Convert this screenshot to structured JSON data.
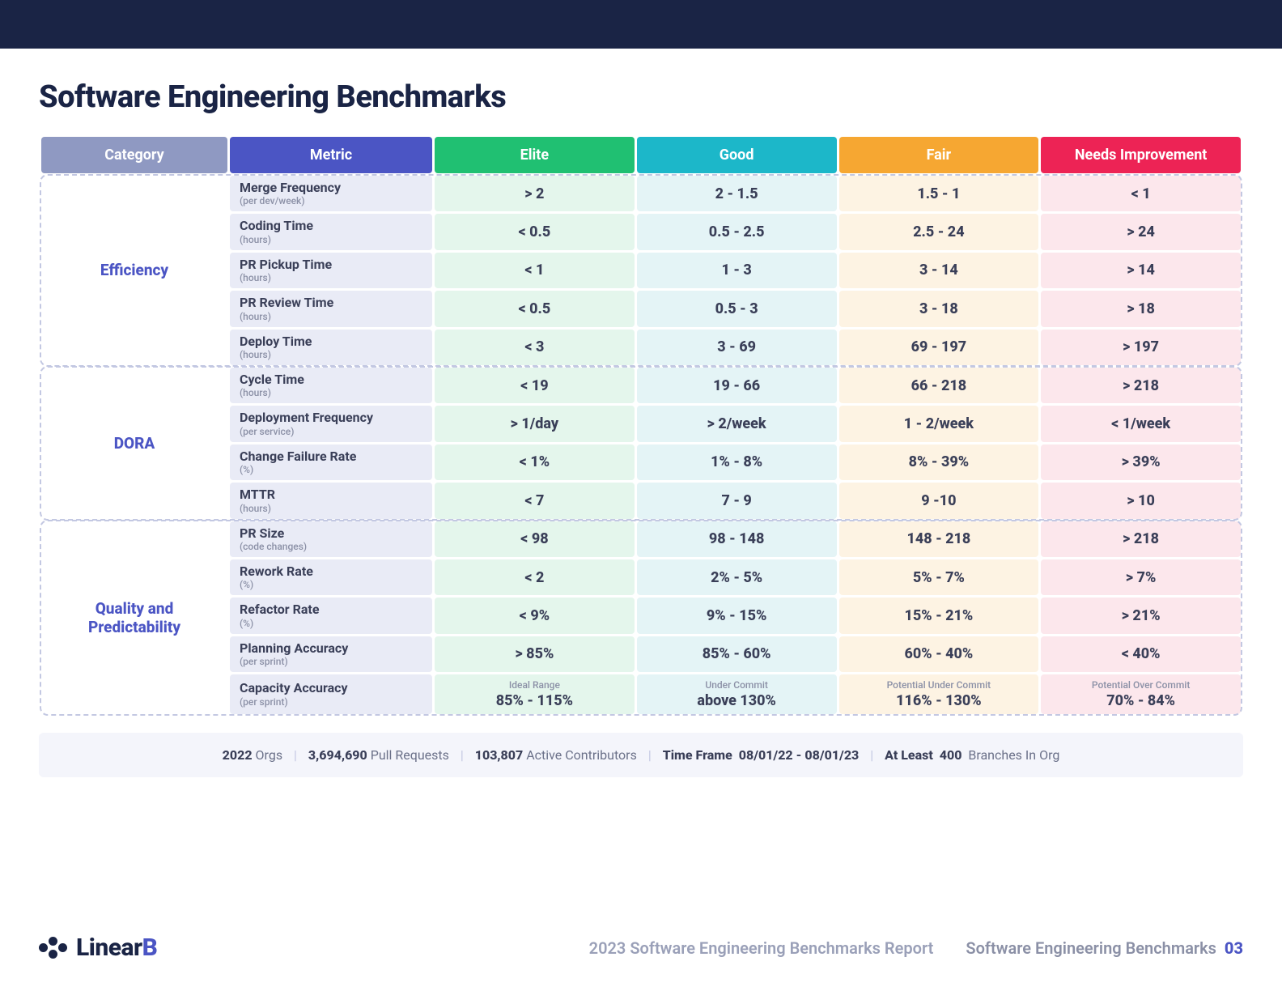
{
  "colors": {
    "topbar": "#1a2445",
    "title": "#1a2445",
    "header_category": "#8f99c2",
    "header_metric": "#4b55c4",
    "header_elite": "#20c072",
    "header_good": "#1cb7c9",
    "header_fair": "#f6a732",
    "header_needs": "#ed2355",
    "cell_metric_bg": "#e9ebf6",
    "cell_elite_bg": "#e4f6ec",
    "cell_good_bg": "#e4f4f6",
    "cell_fair_bg": "#fdf3e3",
    "cell_needs_bg": "#fce7ec",
    "group_border": "#c3c8e2",
    "category_text": "#4b55c4",
    "value_text": "#3a3f58",
    "unit_text": "#8b90a6",
    "stats_bg": "#f4f5fb"
  },
  "title": "Software Engineering Benchmarks",
  "headers": {
    "category": "Category",
    "metric": "Metric",
    "elite": "Elite",
    "good": "Good",
    "fair": "Fair",
    "needs": "Needs Improvement"
  },
  "groups": [
    {
      "name": "Efficiency",
      "rows": [
        {
          "metric": "Merge Frequency",
          "unit": "(per dev/week)",
          "elite": "> 2",
          "good": "2 - 1.5",
          "fair": "1.5 - 1",
          "needs": "< 1"
        },
        {
          "metric": "Coding Time",
          "unit": "(hours)",
          "elite": "< 0.5",
          "good": "0.5 - 2.5",
          "fair": "2.5 - 24",
          "needs": "> 24"
        },
        {
          "metric": "PR Pickup Time",
          "unit": "(hours)",
          "elite": "< 1",
          "good": "1 - 3",
          "fair": "3 - 14",
          "needs": "> 14"
        },
        {
          "metric": "PR Review Time",
          "unit": "(hours)",
          "elite": "< 0.5",
          "good": "0.5 - 3",
          "fair": "3 - 18",
          "needs": "> 18"
        },
        {
          "metric": "Deploy Time",
          "unit": "(hours)",
          "elite": "< 3",
          "good": "3 - 69",
          "fair": "69 - 197",
          "needs": "> 197"
        }
      ]
    },
    {
      "name": "DORA",
      "rows": [
        {
          "metric": "Cycle Time",
          "unit": "(hours)",
          "elite": "< 19",
          "good": "19 - 66",
          "fair": "66 - 218",
          "needs": "> 218"
        },
        {
          "metric": "Deployment Frequency",
          "unit": "(per service)",
          "elite": "> 1/day",
          "good": "> 2/week",
          "fair": "1 - 2/week",
          "needs": "< 1/week"
        },
        {
          "metric": "Change Failure Rate",
          "unit": "(%)",
          "elite": "< 1%",
          "good": "1% - 8%",
          "fair": "8% - 39%",
          "needs": "> 39%"
        },
        {
          "metric": "MTTR",
          "unit": "(hours)",
          "elite": "< 7",
          "good": "7 - 9",
          "fair": "9 -10",
          "needs": "> 10"
        }
      ]
    },
    {
      "name": "Quality and Predictability",
      "rows": [
        {
          "metric": "PR Size",
          "unit": "(code changes)",
          "elite": "< 98",
          "good": "98 - 148",
          "fair": "148 - 218",
          "needs": "> 218"
        },
        {
          "metric": "Rework Rate",
          "unit": "(%)",
          "elite": "< 2",
          "good": "2% - 5%",
          "fair": "5% - 7%",
          "needs": "> 7%"
        },
        {
          "metric": "Refactor Rate",
          "unit": "(%)",
          "elite": "< 9%",
          "good": "9% - 15%",
          "fair": "15% - 21%",
          "needs": "> 21%"
        },
        {
          "metric": "Planning Accuracy",
          "unit": "(per sprint)",
          "elite": "> 85%",
          "good": "85% - 60%",
          "fair": "60% - 40%",
          "needs": "< 40%"
        },
        {
          "metric": "Capacity Accuracy",
          "unit": "(per sprint)",
          "elite_label": "Ideal Range",
          "elite": "85% - 115%",
          "good_label": "Under Commit",
          "good": "above 130%",
          "fair_label": "Potential Under Commit",
          "fair": "116% - 130%",
          "needs_label": "Potential Over Commit",
          "needs": "70% - 84%"
        }
      ]
    }
  ],
  "stats": {
    "orgs_value": "2022",
    "orgs_label": "Orgs",
    "prs_value": "3,694,690",
    "prs_label": "Pull Requests",
    "contrib_value": "103,807",
    "contrib_label": "Active Contributors",
    "timeframe_label": "Time Frame",
    "timeframe_value": "08/01/22 - 08/01/23",
    "branches_label_pre": "At Least",
    "branches_value": "400",
    "branches_label_post": "Branches In Org"
  },
  "footer": {
    "logo_a": "Linear",
    "logo_b": "B",
    "mid": "2023 Software Engineering Benchmarks Report",
    "right": "Software Engineering Benchmarks",
    "page": "03"
  }
}
